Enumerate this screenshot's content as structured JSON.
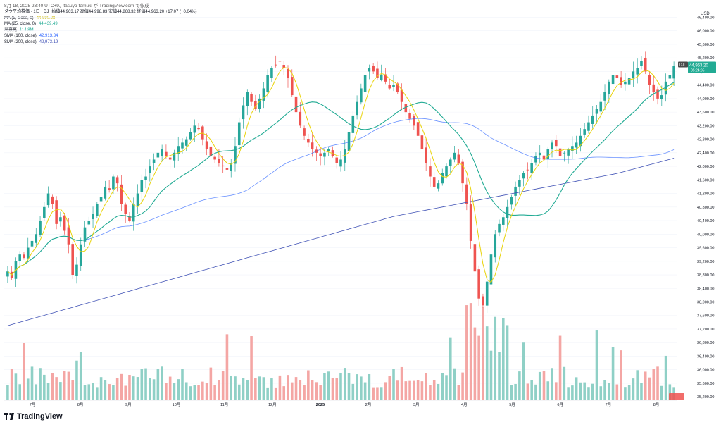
{
  "caption": "8月 18, 2025 23:40 UTC+9、tasuyo-tamuki が TradingView.com で作成",
  "header": {
    "symbol": "ダウ平均株価 · 1日 · DJ",
    "ohlc_text": "始値44,963.17 高値44,998.83 安値44,868.32 終値44,963.20 +17.07 (+0.04%)"
  },
  "indicators": [
    {
      "label": "MA (5, close, 0)",
      "value": "44,690.98",
      "color": "#c9b800"
    },
    {
      "label": "MA (25, close, 0)",
      "value": "44,439.49",
      "color": "#22ab94"
    },
    {
      "label": "出来高",
      "value": "114.8M",
      "color": "#22ab94"
    },
    {
      "label": "SMA (100, close)",
      "value": "42,913.34",
      "color": "#2962ff"
    },
    {
      "label": "SMA (200, close)",
      "value": "42,973.19",
      "color": "#3f51b5"
    }
  ],
  "price_badge": {
    "symbol": "DJI",
    "value": "44,963.20",
    "time": "05:24:05"
  },
  "footer": {
    "brand": "TradingView"
  },
  "chart_data": {
    "type": "candlestick",
    "currency": "USD",
    "y_ticks": [
      "46,400.00",
      "46,000.00",
      "45,600.00",
      "45,200.00",
      "44,800.00",
      "44,400.00",
      "44,000.00",
      "43,600.00",
      "43,200.00",
      "42,800.00",
      "42,400.00",
      "42,000.00",
      "41,600.00",
      "41,200.00",
      "40,800.00",
      "40,400.00",
      "40,000.00",
      "39,600.00",
      "39,200.00",
      "38,800.00",
      "38,400.00",
      "38,000.00",
      "37,600.00",
      "37,200.00",
      "36,800.00",
      "36,400.00",
      "36,000.00",
      "35,600.00",
      "35,200.00"
    ],
    "x_ticks": [
      "7月",
      "8月",
      "9月",
      "10月",
      "11月",
      "12月",
      "2025",
      "2月",
      "3月",
      "4月",
      "5月",
      "6月",
      "7月",
      "8月"
    ],
    "ylim": [
      35100,
      46700
    ],
    "close_series": [
      38900,
      38700,
      39200,
      39400,
      39300,
      39600,
      39800,
      40000,
      40400,
      40800,
      41200,
      40900,
      40300,
      40500,
      40100,
      39700,
      38800,
      39100,
      39700,
      40200,
      40400,
      40600,
      40900,
      41100,
      41400,
      41300,
      41700,
      41500,
      40900,
      40600,
      40400,
      40900,
      41200,
      41600,
      41700,
      42000,
      42200,
      42400,
      42500,
      42300,
      42200,
      42400,
      42600,
      42700,
      42800,
      43000,
      43200,
      43100,
      42800,
      42500,
      42300,
      42200,
      42100,
      42000,
      41900,
      42100,
      42600,
      43300,
      43800,
      44200,
      43900,
      43700,
      44000,
      44300,
      44700,
      44900,
      45000,
      45100,
      44900,
      44600,
      44100,
      43600,
      43200,
      42900,
      42700,
      42500,
      42400,
      42300,
      42400,
      42500,
      42300,
      42100,
      42200,
      42500,
      43000,
      43500,
      43900,
      44300,
      44700,
      44900,
      44800,
      44600,
      44700,
      44500,
      44300,
      44400,
      44200,
      43900,
      43600,
      43400,
      43200,
      42900,
      42500,
      42100,
      41700,
      41400,
      41500,
      41800,
      42000,
      42200,
      42400,
      42100,
      41500,
      40900,
      39800,
      38900,
      38100,
      37900,
      38600,
      39400,
      40000,
      40300,
      40500,
      40800,
      41100,
      41400,
      41600,
      41800,
      41900,
      42100,
      42300,
      42400,
      42200,
      42500,
      42700,
      42600,
      42300,
      42400,
      42500,
      42600,
      42700,
      42900,
      43100,
      43300,
      43500,
      43700,
      43900,
      44200,
      44500,
      44700,
      44600,
      44400,
      44500,
      44600,
      44800,
      44900,
      45100,
      44800,
      44400,
      44200,
      44000,
      44100,
      44500,
      44700,
      44963
    ],
    "ma5_last": 44690.98,
    "ma25_last": 44439.49,
    "volume_last": "114.8M",
    "sma100_last": 42913.34,
    "sma200_last": 42973.19,
    "last_price": 44963.2
  }
}
